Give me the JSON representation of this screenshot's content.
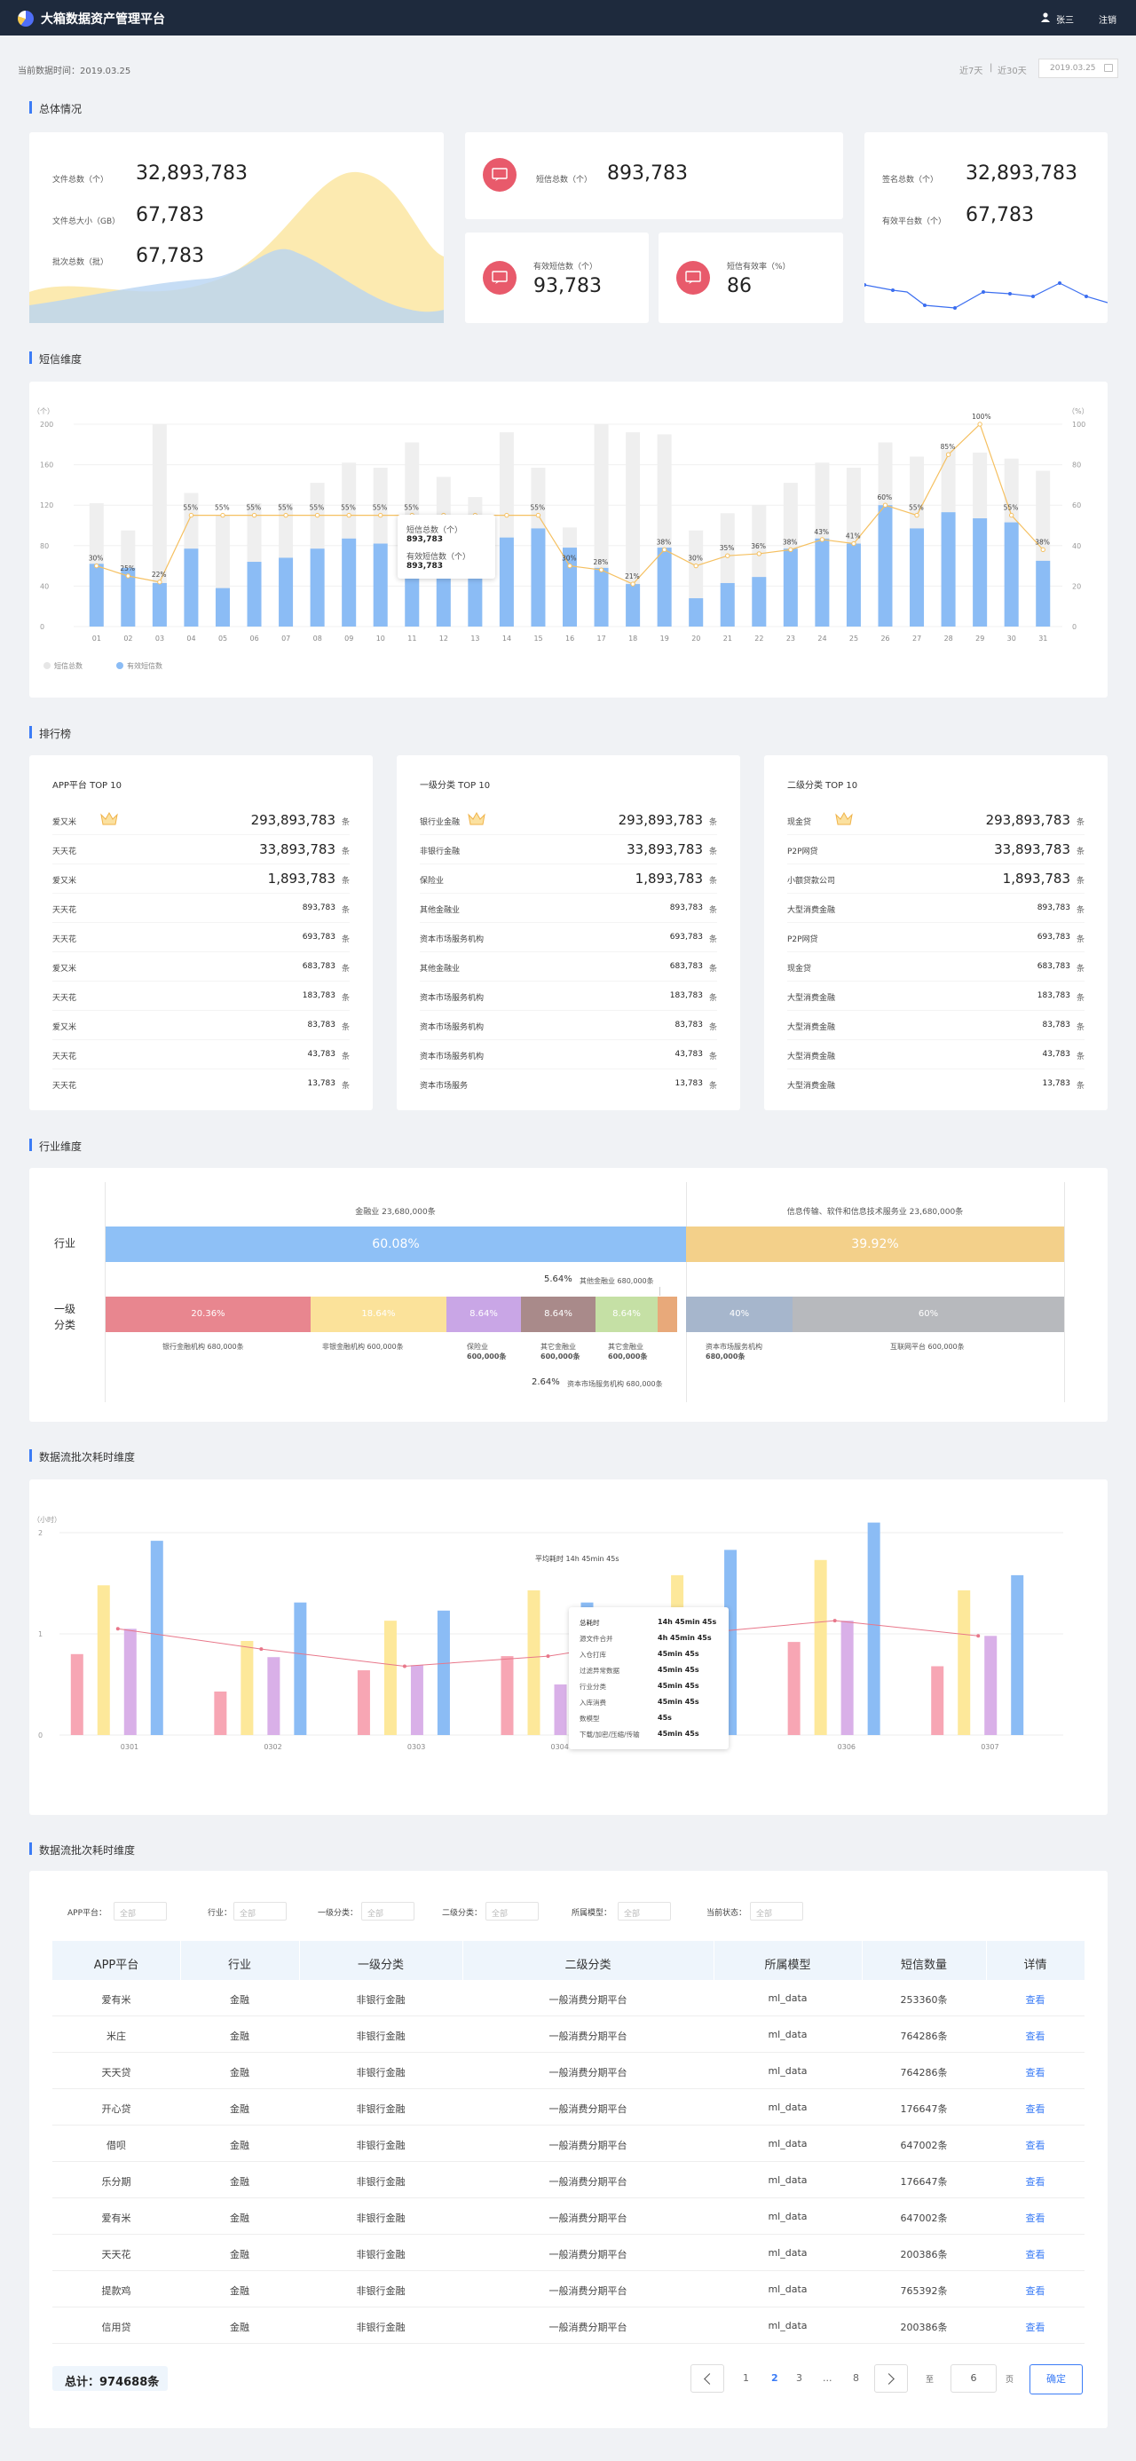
{
  "header": {
    "title": "大箱数据资产管理平台",
    "user": "张三",
    "logout": "注销"
  },
  "toolbar": {
    "update_time": "当前数据时间：2019.03.25",
    "last7": "近7天",
    "last30": "近30天",
    "sep": "|",
    "date": "2019.03.25"
  },
  "sections": {
    "overall": "总体情况",
    "sms": "短信维度",
    "rank": "排行榜",
    "industry": "行业维度",
    "flow1": "数据流批次耗时维度",
    "flow2": "数据流批次耗时维度"
  },
  "overall": {
    "files": [
      {
        "label": "文件总数（个）",
        "value": "32,893,783"
      },
      {
        "label": "文件总大小（GB）",
        "value": "67,783"
      },
      {
        "label": "批次总数（批）",
        "value": "67,783"
      }
    ],
    "sms_total": {
      "label": "短信总数（个）",
      "value": "893,783"
    },
    "sms_valid": {
      "label": "有效短信数（个）",
      "value": "93,783"
    },
    "sms_rate": {
      "label": "短信有效率（%）",
      "value": "86"
    },
    "sign": {
      "label": "签名总数（个）",
      "value": "32,893,783"
    },
    "platforms": {
      "label": "有效平台数（个）",
      "value": "67,783"
    }
  },
  "chart_data": {
    "type": "bar",
    "categories": [
      "01",
      "02",
      "03",
      "04",
      "05",
      "06",
      "07",
      "08",
      "09",
      "10",
      "11",
      "12",
      "13",
      "14",
      "15",
      "16",
      "17",
      "18",
      "19",
      "20",
      "21",
      "22",
      "23",
      "24",
      "25",
      "26",
      "27",
      "28",
      "29",
      "30",
      "31"
    ],
    "series": [
      {
        "name": "短信总数",
        "values": [
          122,
          95,
          200,
          132,
          110,
          122,
          122,
          142,
          162,
          157,
          182,
          148,
          128,
          192,
          157,
          98,
          200,
          192,
          190,
          95,
          112,
          120,
          142,
          162,
          157,
          182,
          168,
          175,
          172,
          166,
          154
        ]
      },
      {
        "name": "有效短信数",
        "values": [
          62,
          58,
          43,
          77,
          38,
          64,
          68,
          77,
          87,
          82,
          103,
          92,
          72,
          88,
          97,
          78,
          58,
          42,
          78,
          28,
          43,
          49,
          77,
          87,
          82,
          120,
          97,
          113,
          107,
          103,
          65
        ]
      },
      {
        "name": "有效率",
        "values": [
          30,
          25,
          22,
          55,
          55,
          55,
          55,
          55,
          55,
          55,
          55,
          55,
          55,
          55,
          55,
          30,
          28,
          21,
          38,
          30,
          35,
          36,
          38,
          43,
          41,
          60,
          55,
          85,
          100,
          55,
          38
        ]
      }
    ],
    "rate_labels": [
      "30%",
      "25%",
      "22%",
      "55%",
      "55%",
      "55%",
      "55%",
      "55%",
      "55%",
      "55%",
      "55%",
      "",
      "",
      "",
      "55%",
      "30%",
      "28%",
      "21%",
      "38%",
      "30%",
      "35%",
      "36%",
      "38%",
      "43%",
      "41%",
      "60%",
      "55%",
      "85%",
      "100%",
      "55%",
      "38%"
    ],
    "y_left_ticks": [
      "200",
      "160",
      "120",
      "80",
      "40",
      "0"
    ],
    "y_right_ticks": [
      "100",
      "80",
      "60",
      "40",
      "20",
      "0"
    ],
    "ylabel_left": "（个）",
    "ylabel_right": "（%）",
    "ylim": [
      0,
      200
    ],
    "tooltip": {
      "l1": "短信总数（个）",
      "v1": "893,783",
      "l2": "有效短信数（个）",
      "v2": "893,783"
    },
    "legend": [
      "短信总数",
      "有效短信数"
    ]
  },
  "rank": [
    {
      "title": "APP平台 TOP 10",
      "rows": [
        [
          "爱又米",
          "293,893,783"
        ],
        [
          "天天花",
          "33,893,783"
        ],
        [
          "爱又米",
          "1,893,783"
        ],
        [
          "天天花",
          "893,783"
        ],
        [
          "天天花",
          "693,783"
        ],
        [
          "爱又米",
          "683,783"
        ],
        [
          "天天花",
          "183,783"
        ],
        [
          "爱又米",
          "83,783"
        ],
        [
          "天天花",
          "43,783"
        ],
        [
          "天天花",
          "13,783"
        ]
      ]
    },
    {
      "title": "一级分类 TOP 10",
      "rows": [
        [
          "银行业金融",
          "293,893,783"
        ],
        [
          "非银行金融",
          "33,893,783"
        ],
        [
          "保险业",
          "1,893,783"
        ],
        [
          "其他金融业",
          "893,783"
        ],
        [
          "资本市场服务机构",
          "693,783"
        ],
        [
          "其他金融业",
          "683,783"
        ],
        [
          "资本市场服务机构",
          "183,783"
        ],
        [
          "资本市场服务机构",
          "83,783"
        ],
        [
          "资本市场服务机构",
          "43,783"
        ],
        [
          "资本市场服务",
          "13,783"
        ]
      ]
    },
    {
      "title": "二级分类 TOP 10",
      "rows": [
        [
          "现金贷",
          "293,893,783"
        ],
        [
          "P2P网贷",
          "33,893,783"
        ],
        [
          "小额贷款公司",
          "1,893,783"
        ],
        [
          "大型消费金融",
          "893,783"
        ],
        [
          "P2P网贷",
          "693,783"
        ],
        [
          "现金贷",
          "683,783"
        ],
        [
          "大型消费金融",
          "183,783"
        ],
        [
          "大型消费金融",
          "83,783"
        ],
        [
          "大型消费金融",
          "43,783"
        ],
        [
          "大型消费金融",
          "13,783"
        ]
      ]
    }
  ],
  "rank_unit": "条",
  "industry": {
    "row1": "行业",
    "row2": "一级分类",
    "top_left": "金融业 23,680,000条",
    "top_right": "信息传输、软件和信息技术服务业 23,680,000条",
    "pct_left": "60.08%",
    "pct_right": "39.92%",
    "note1_pct": "5.64%",
    "note1": "其他金融业 680,000条",
    "segs": [
      "20.36%",
      "18.64%",
      "8.64%",
      "8.64%",
      "8.64%",
      "40%",
      "60%"
    ],
    "bl1": "银行金融机构 680,000条",
    "bl2": "非银金融机构 600,000条",
    "bl3a": "保险业",
    "bl3b": "600,000条",
    "bl4a": "其它金融业",
    "bl4b": "600,000条",
    "bl5a": "其它金融业",
    "bl5b": "600,000条",
    "bl6a": "资本市场服务机构",
    "bl6b": "680,000条",
    "bl7": "互联网平台 600,000条",
    "note2_pct": "2.64%",
    "note2": "资本市场服务机构 680,000条"
  },
  "flow": {
    "ylabel": "（小时）",
    "ticks": [
      "2",
      "1",
      "0"
    ],
    "cats": [
      "0301",
      "0302",
      "0303",
      "0304",
      "0305",
      "0306",
      "0307"
    ],
    "avg": "平均耗时 14h 45min 45s",
    "tip": [
      [
        "总耗时",
        "14h 45min 45s"
      ],
      [
        "源文件合并",
        "4h 45min 45s"
      ],
      [
        "入仓打库",
        "45min 45s"
      ],
      [
        "过滤异常数据",
        "45min 45s"
      ],
      [
        "行业分类",
        "45min 45s"
      ],
      [
        "入库消费",
        "45min 45s"
      ],
      [
        "数模型",
        "45s"
      ],
      [
        "下载/加密/压缩/传输",
        "45min 45s"
      ]
    ],
    "values": {
      "red": [
        0.8,
        0.43,
        0.64,
        0.78,
        0.5,
        0.92,
        0.68
      ],
      "yellow": [
        1.48,
        0.93,
        1.13,
        1.43,
        1.58,
        1.73,
        1.43
      ],
      "purple": [
        1.05,
        0.77,
        0.69,
        0.5,
        1.02,
        1.13,
        0.98
      ],
      "blue": [
        1.92,
        1.31,
        1.23,
        1.31,
        1.83,
        2.1,
        1.58
      ],
      "avg": [
        1.05,
        0.85,
        0.68,
        0.78,
        1.0,
        1.13,
        0.98
      ]
    }
  },
  "filters": [
    {
      "label": "APP平台：",
      "value": "全部"
    },
    {
      "label": "行业：",
      "value": "全部"
    },
    {
      "label": "一级分类：",
      "value": "全部"
    },
    {
      "label": "二级分类：",
      "value": "全部"
    },
    {
      "label": "所属模型：",
      "value": "全部"
    },
    {
      "label": "当前状态：",
      "value": "全部"
    }
  ],
  "table": {
    "headers": [
      "APP平台",
      "行业",
      "一级分类",
      "二级分类",
      "所属模型",
      "短信数量",
      "详情"
    ],
    "rows": [
      [
        "爱有米",
        "金融",
        "非银行金融",
        "一般消费分期平台",
        "ml_data",
        "253360条",
        "查看"
      ],
      [
        "米庄",
        "金融",
        "非银行金融",
        "一般消费分期平台",
        "ml_data",
        "764286条",
        "查看"
      ],
      [
        "天天贷",
        "金融",
        "非银行金融",
        "一般消费分期平台",
        "ml_data",
        "764286条",
        "查看"
      ],
      [
        "开心贷",
        "金融",
        "非银行金融",
        "一般消费分期平台",
        "ml_data",
        "176647条",
        "查看"
      ],
      [
        "借呗",
        "金融",
        "非银行金融",
        "一般消费分期平台",
        "ml_data",
        "647002条",
        "查看"
      ],
      [
        "乐分期",
        "金融",
        "非银行金融",
        "一般消费分期平台",
        "ml_data",
        "176647条",
        "查看"
      ],
      [
        "爱有米",
        "金融",
        "非银行金融",
        "一般消费分期平台",
        "ml_data",
        "647002条",
        "查看"
      ],
      [
        "天天花",
        "金融",
        "非银行金融",
        "一般消费分期平台",
        "ml_data",
        "200386条",
        "查看"
      ],
      [
        "提款鸡",
        "金融",
        "非银行金融",
        "一般消费分期平台",
        "ml_data",
        "765392条",
        "查看"
      ],
      [
        "信用贷",
        "金融",
        "非银行金融",
        "一般消费分期平台",
        "ml_data",
        "200386条",
        "查看"
      ]
    ]
  },
  "footer": {
    "total": "总计：974688条",
    "pages": [
      "1",
      "2",
      "3",
      "...",
      "8"
    ],
    "goto": "至",
    "goto_value": "6",
    "page": "页",
    "confirm": "确定"
  },
  "colors": {
    "accent": "#3b7cf6",
    "header": "#1e2a3d",
    "red": "#e85a6b",
    "bar_blue": "#8bbcf5",
    "bar_gray": "#efefef",
    "line": "#f5c061"
  }
}
